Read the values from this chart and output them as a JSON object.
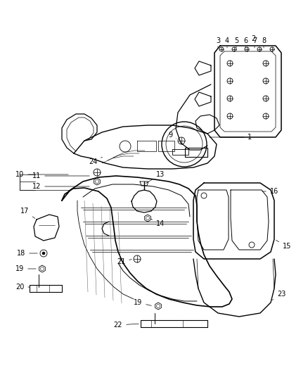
{
  "bg_color": "#ffffff",
  "line_color": "#000000",
  "label_color": "#000000",
  "figsize": [
    4.38,
    5.33
  ],
  "dpi": 100
}
